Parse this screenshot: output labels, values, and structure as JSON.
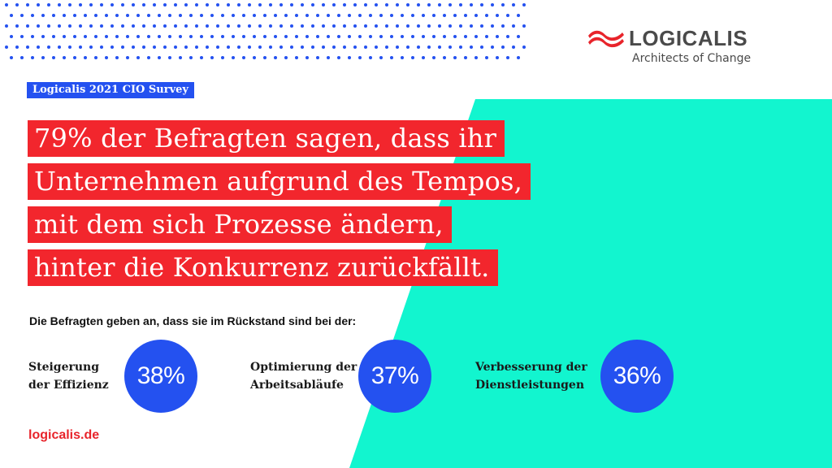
{
  "brand": {
    "name": "LOGICALIS",
    "tagline": "Architects of Change",
    "logo_color": "#e8242b"
  },
  "survey_tag": "Logicalis 2021 CIO Survey",
  "headline": {
    "lines": [
      "79% der Befragten sagen, dass ihr",
      "Unternehmen aufgrund des Tempos,",
      "mit dem sich Prozesse ändern,",
      "hinter die Konkurrenz zurückfällt."
    ]
  },
  "subtitle": "Die Befragten geben an, dass sie im Rückstand sind bei der:",
  "stats": [
    {
      "label_line1": "Steigerung",
      "label_line2": "der Effizienz",
      "value": "38%"
    },
    {
      "label_line1": "Optimierung der",
      "label_line2": "Arbeitsabläufe",
      "value": "37%"
    },
    {
      "label_line1": "Verbesserung der",
      "label_line2": "Dienstleistungen",
      "value": "36%"
    }
  ],
  "footer_link": "logicalis.de",
  "colors": {
    "accent_red": "#f2262d",
    "accent_blue": "#2451f0",
    "accent_teal": "#12f5cf",
    "text_dark": "#1a1a1a"
  }
}
